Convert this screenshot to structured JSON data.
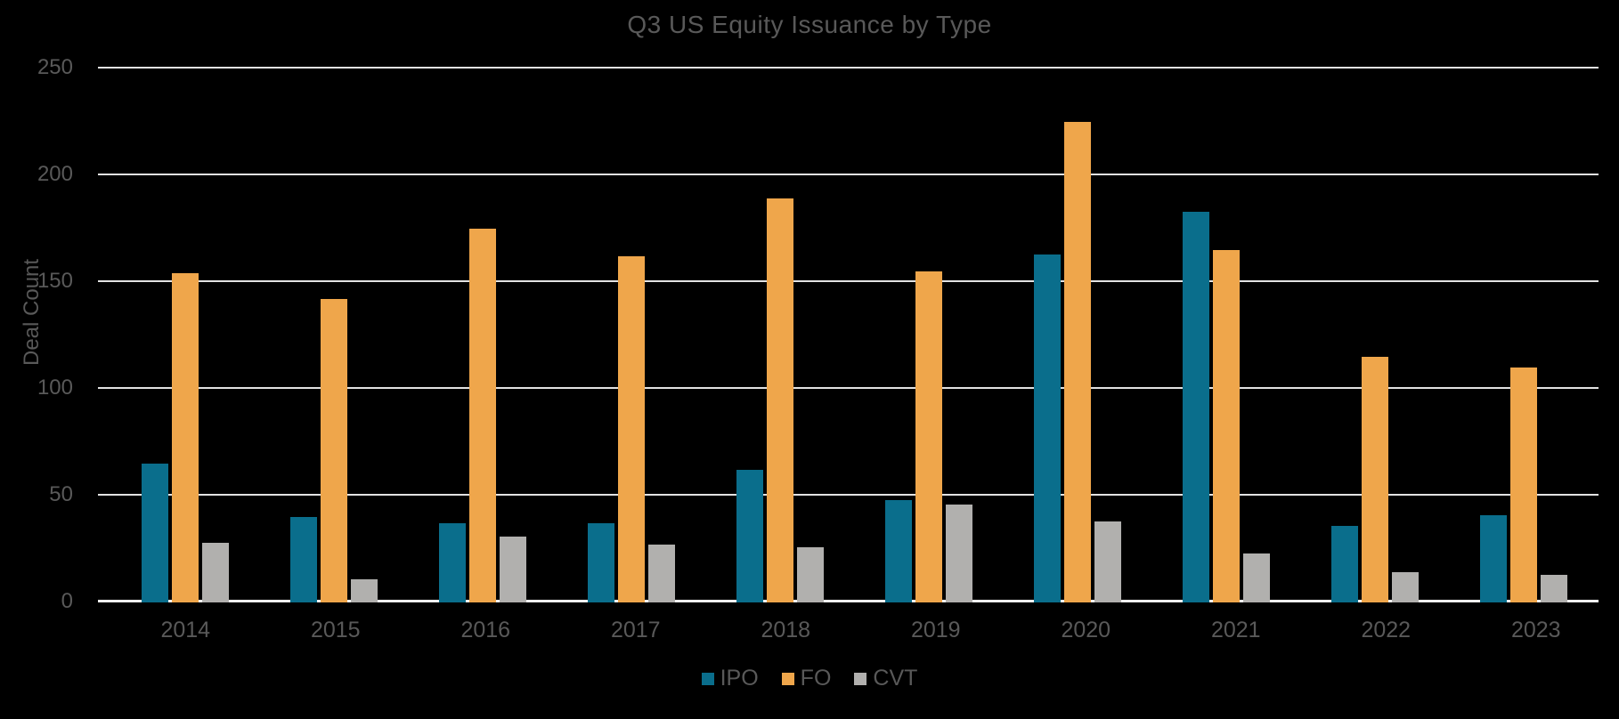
{
  "colors": {
    "background": "#000000",
    "text": "#595959",
    "gridline": "#e2e2e2",
    "axis_line": "#efefef",
    "ipo": "#0a6e8c",
    "fo": "#efa64b",
    "cvt": "#b1b0ae"
  },
  "chart_data": {
    "type": "bar",
    "title": "Q3 US Equity Issuance by Type",
    "xlabel": "",
    "ylabel": "Deal Count",
    "categories": [
      "2014",
      "2015",
      "2016",
      "2017",
      "2018",
      "2019",
      "2020",
      "2021",
      "2022",
      "2023"
    ],
    "series": [
      {
        "name": "IPO",
        "color": "#0a6e8c",
        "values": [
          65,
          40,
          37,
          37,
          62,
          48,
          163,
          183,
          36,
          41
        ]
      },
      {
        "name": "FO",
        "color": "#efa64b",
        "values": [
          154,
          142,
          175,
          162,
          189,
          155,
          225,
          165,
          115,
          110
        ]
      },
      {
        "name": "CVT",
        "color": "#b1b0ae",
        "values": [
          28,
          11,
          31,
          27,
          26,
          46,
          38,
          23,
          14,
          13
        ]
      }
    ],
    "ylim": [
      0,
      250
    ],
    "yticks": [
      0,
      50,
      100,
      150,
      200,
      250
    ],
    "grid": true,
    "legend_position": "bottom"
  }
}
